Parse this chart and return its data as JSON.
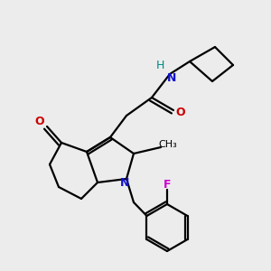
{
  "bg_color": "#ececec",
  "colors": {
    "bond": "#000000",
    "N": "#1010cc",
    "O": "#cc0000",
    "F": "#cc00cc",
    "H": "#008888"
  },
  "lw": 1.6
}
